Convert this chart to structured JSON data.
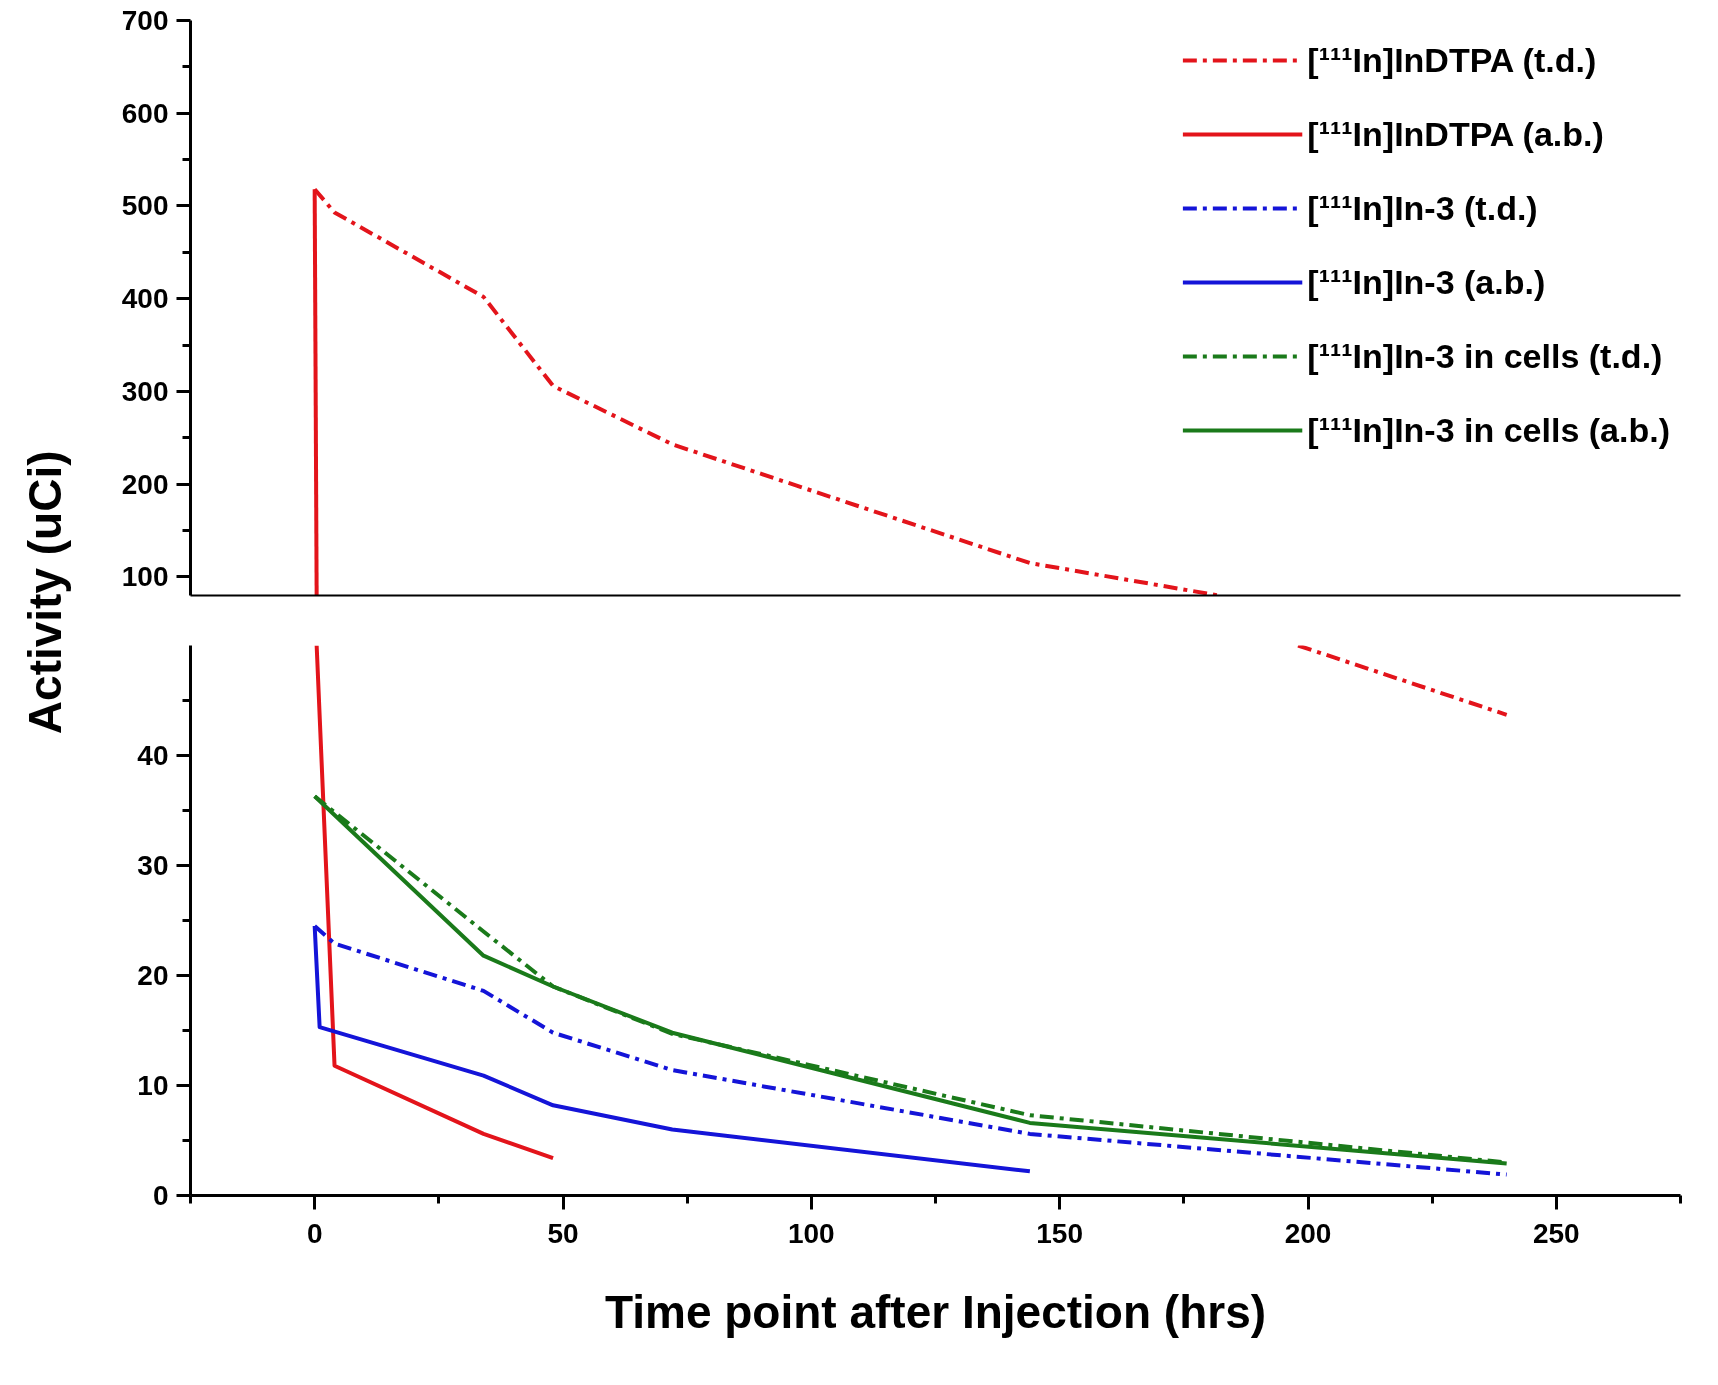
{
  "chart_data": [
    {
      "type": "line",
      "ylim": [
        80,
        700
      ],
      "yticks": [
        100,
        200,
        300,
        400,
        500,
        600,
        700
      ],
      "xlim": [
        -25,
        275
      ],
      "tick_labels": "y",
      "legend": "top right",
      "grid": false,
      "series": [
        {
          "color": "#e3141b",
          "line_style": "dashdot",
          "x": [
            0,
            4,
            34,
            48,
            72,
            144,
            182
          ],
          "values": [
            518,
            493,
            402,
            306,
            243,
            115,
            80
          ]
        },
        {
          "color": "#e3141b",
          "line_style": "solid",
          "x": [
            0,
            0.4
          ],
          "values": [
            518,
            80
          ]
        }
      ]
    },
    {
      "type": "line",
      "ylim": [
        0,
        50
      ],
      "yticks": [
        0,
        10,
        20,
        30,
        40
      ],
      "xlim": [
        -25,
        275
      ],
      "xticks": [
        0,
        50,
        100,
        150,
        200,
        250
      ],
      "xlabel": "Time point after Injection (hrs)",
      "ylabel": "Activity (uCi)",
      "grid": false,
      "legend": "top",
      "series": [
        {
          "name": "[¹¹¹In]InDTPA (t.d.)",
          "color": "#e3141b",
          "line_style": "dashdot",
          "x": [
            198,
            240
          ],
          "values": [
            50,
            43.7
          ]
        },
        {
          "name": "[¹¹¹In]InDTPA (a.b.)",
          "color": "#e3141b",
          "line_style": "solid",
          "x": [
            0.4,
            4,
            34,
            48
          ],
          "values": [
            50,
            11.8,
            5.6,
            3.4
          ]
        },
        {
          "name": "[¹¹¹In]In-3 (t.d.)",
          "color": "#1414d8",
          "line_style": "dashdot",
          "x": [
            0,
            4,
            34,
            48,
            72,
            144,
            240
          ],
          "values": [
            24.5,
            22.9,
            18.6,
            14.8,
            11.4,
            5.6,
            1.9
          ]
        },
        {
          "name": "[¹¹¹In]In-3 (a.b.)",
          "color": "#1414d8",
          "line_style": "solid",
          "x": [
            0,
            1,
            34,
            48,
            72,
            144
          ],
          "values": [
            24.5,
            15.3,
            10.9,
            8.2,
            6.0,
            2.2
          ]
        },
        {
          "name": "[¹¹¹In]In-3 in cells (t.d.)",
          "color": "#1a7a1a",
          "line_style": "dashdot",
          "x": [
            0,
            34,
            48,
            72,
            144,
            240
          ],
          "values": [
            36.3,
            24.0,
            19.0,
            14.7,
            7.3,
            3.0
          ]
        },
        {
          "name": "[¹¹¹In]In-3 in cells (a.b.)",
          "color": "#1a7a1a",
          "line_style": "solid",
          "x": [
            0,
            34,
            48,
            72,
            144,
            240
          ],
          "values": [
            36.3,
            21.8,
            19.0,
            14.8,
            6.6,
            2.9
          ]
        }
      ]
    }
  ]
}
